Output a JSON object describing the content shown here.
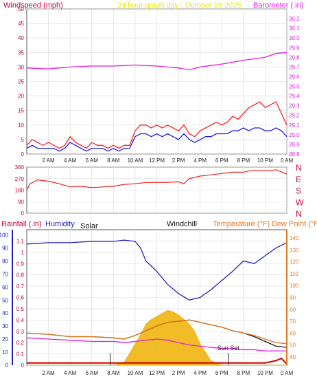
{
  "header": {
    "windspeed_label": "Windspeed (mph)",
    "title": "24 hour graph day : October 18 2025",
    "barometer_label": "Barometer (.in)"
  },
  "colors": {
    "windspeed": "#cc0033",
    "gust_line": "#ff2020",
    "avg_line": "#1a1aee",
    "barometer": "#e020e0",
    "title": "#e8e800",
    "rain_axis": "#cc0033",
    "humidity": "#2020c0",
    "temperature": "#e07820",
    "solar_fill": "#f0b000",
    "direction": "#ee2020"
  },
  "chart_data": [
    {
      "type": "line",
      "title": "24 hour graph day : October 18 2025",
      "x_ticks": [
        "2 AM",
        "4 AM",
        "6 AM",
        "8 AM",
        "10 AM",
        "12 PM",
        "2 PM",
        "4 PM",
        "6 PM",
        "8 PM",
        "10 PM",
        "0 AM"
      ],
      "x_range_hours": [
        0,
        24
      ],
      "ylabel": "Windspeed (mph)",
      "y_ticks": [
        0,
        5,
        10,
        15,
        20,
        25,
        30,
        35,
        40,
        45,
        50
      ],
      "ylim": [
        0,
        50
      ],
      "y2label": "Barometer (.in)",
      "y2_ticks": [
        28.8,
        28.9,
        29.0,
        29.1,
        29.2,
        29.3,
        29.4,
        29.5,
        29.6,
        29.7,
        29.8,
        29.9,
        30.0,
        30.1,
        30.2
      ],
      "y2lim": [
        28.8,
        30.3
      ],
      "series": [
        {
          "name": "Wind Gust",
          "x": [
            0,
            0.5,
            1,
            1.5,
            2,
            2.5,
            3,
            3.5,
            4,
            4.5,
            5,
            5.5,
            6,
            6.5,
            7,
            7.5,
            8,
            8.5,
            9,
            9.5,
            10,
            10.5,
            11,
            11.5,
            12,
            12.5,
            13,
            13.5,
            14,
            14.5,
            15,
            15.5,
            16,
            16.5,
            17,
            17.5,
            18,
            18.5,
            19,
            19.5,
            20,
            20.5,
            21,
            21.5,
            22,
            22.5,
            23,
            23.5,
            24
          ],
          "values": [
            3,
            5,
            4,
            3,
            4,
            3,
            2,
            3,
            6,
            4,
            3,
            2,
            4,
            3,
            3,
            2,
            3,
            2,
            3,
            3,
            8,
            10,
            10,
            9,
            10,
            9,
            10,
            9,
            8,
            10,
            7,
            6,
            8,
            9,
            10,
            11,
            10,
            11,
            13,
            12,
            14,
            16,
            17,
            18,
            16,
            17,
            18,
            14,
            10
          ]
        },
        {
          "name": "Average Wind",
          "x": [
            0,
            0.5,
            1,
            1.5,
            2,
            2.5,
            3,
            3.5,
            4,
            4.5,
            5,
            5.5,
            6,
            6.5,
            7,
            7.5,
            8,
            8.5,
            9,
            9.5,
            10,
            10.5,
            11,
            11.5,
            12,
            12.5,
            13,
            13.5,
            14,
            14.5,
            15,
            15.5,
            16,
            16.5,
            17,
            17.5,
            18,
            18.5,
            19,
            19.5,
            20,
            20.5,
            21,
            21.5,
            22,
            22.5,
            23,
            23.5,
            24
          ],
          "values": [
            2,
            3,
            2,
            2,
            2,
            2,
            1,
            2,
            4,
            3,
            2,
            1,
            2,
            2,
            2,
            1,
            2,
            1,
            2,
            2,
            6,
            7,
            7,
            6,
            7,
            6,
            7,
            6,
            5,
            7,
            5,
            4,
            5,
            6,
            6,
            7,
            7,
            7,
            8,
            8,
            9,
            8,
            9,
            9,
            8,
            8,
            9,
            8,
            6
          ]
        },
        {
          "name": "Barometer",
          "axis": "y2",
          "x": [
            0,
            2,
            4,
            6,
            8,
            10,
            12,
            14,
            15,
            16,
            18,
            20,
            22,
            23,
            24
          ],
          "values": [
            29.69,
            29.68,
            29.7,
            29.71,
            29.71,
            29.72,
            29.71,
            29.69,
            29.67,
            29.7,
            29.73,
            29.77,
            29.8,
            29.84,
            29.85
          ]
        }
      ]
    },
    {
      "type": "line",
      "ylabel": "Wind direction",
      "y_ticks": [
        0,
        90,
        180,
        270,
        360
      ],
      "ylim": [
        0,
        360
      ],
      "y2_ticks": [
        "N",
        "W",
        "S",
        "E",
        "N"
      ],
      "series": [
        {
          "name": "Wind Direction",
          "x": [
            0,
            0.3,
            1,
            2,
            3,
            4,
            5,
            6,
            7,
            8,
            9,
            10,
            11,
            12,
            13,
            14,
            14.5,
            15,
            16,
            17,
            18,
            19,
            20,
            20.5,
            21,
            21.5,
            22,
            22.5,
            23,
            24
          ],
          "values": [
            180,
            230,
            260,
            250,
            230,
            205,
            210,
            200,
            205,
            210,
            225,
            230,
            240,
            240,
            240,
            245,
            230,
            270,
            290,
            300,
            310,
            320,
            320,
            330,
            335,
            330,
            335,
            330,
            340,
            305
          ]
        }
      ]
    },
    {
      "type": "area",
      "legend": [
        "Rainfall (.in)",
        "Humidity",
        "Solar",
        "Windchill",
        "Temperature (°F)",
        "Dew Point (°F)"
      ],
      "annotations": [
        "Sun Set"
      ],
      "y_ticks_rain": [
        0,
        0.1,
        0.2,
        0.3,
        0.4,
        0.5,
        0.6,
        0.7,
        0.8,
        0.9,
        1.0,
        1.1
      ],
      "ylim_rain": [
        0,
        1.2
      ],
      "y_ticks_humidity": [
        0,
        10,
        20,
        30,
        40,
        50,
        60,
        70,
        80,
        90,
        100
      ],
      "ylim_humidity": [
        0,
        104
      ],
      "y_ticks_temp": [
        40,
        50,
        60,
        70,
        80,
        90,
        100,
        110,
        120,
        130,
        140
      ],
      "ylim_temp": [
        33,
        147
      ],
      "series": [
        {
          "name": "Humidity",
          "x": [
            0,
            2,
            4,
            6,
            8,
            9,
            10,
            10.5,
            11,
            12,
            13,
            14,
            15,
            16,
            17,
            18,
            19,
            20,
            21,
            22,
            23,
            24
          ],
          "values": [
            93,
            94,
            94,
            95,
            95,
            96,
            95,
            90,
            80,
            72,
            62,
            55,
            50,
            52,
            58,
            65,
            72,
            80,
            78,
            84,
            90,
            94
          ]
        },
        {
          "name": "Temperature (°F)",
          "x": [
            0,
            2,
            4,
            6,
            8,
            9,
            10,
            11,
            12,
            13,
            14,
            15,
            16,
            17,
            18,
            19,
            20,
            21,
            22,
            23,
            24
          ],
          "values": [
            60,
            59,
            57,
            57,
            56,
            55,
            58,
            62,
            66,
            69,
            70,
            71,
            69,
            67,
            65,
            62,
            60,
            58,
            55,
            52,
            51
          ]
        },
        {
          "name": "Windchill",
          "x": [
            0,
            2,
            4,
            6,
            8,
            9,
            10,
            11,
            12,
            13,
            14,
            15,
            16,
            17,
            18,
            19,
            20,
            21,
            22,
            23,
            24
          ],
          "values": [
            60,
            59,
            57,
            57,
            56,
            55,
            58,
            62,
            66,
            69,
            70,
            71,
            69,
            67,
            65,
            62,
            60,
            57,
            53,
            49,
            48
          ]
        },
        {
          "name": "Dew Point (°F)",
          "x": [
            0,
            2,
            4,
            6,
            8,
            9,
            10,
            11,
            12,
            13,
            14,
            15,
            16,
            17,
            18,
            19,
            20,
            21,
            22,
            23,
            24
          ],
          "values": [
            56,
            55,
            54,
            53,
            53,
            52,
            53,
            54,
            55,
            54,
            52,
            50,
            49,
            48,
            47,
            47,
            46,
            46,
            45,
            45,
            45
          ]
        },
        {
          "name": "Solar",
          "x": [
            0,
            8,
            9,
            9.5,
            10,
            10.5,
            11,
            11.5,
            12,
            12.5,
            13,
            13.5,
            14,
            14.5,
            15,
            15.5,
            16,
            17,
            18,
            24
          ],
          "values": [
            0,
            0,
            2,
            8,
            14,
            20,
            27,
            30,
            32,
            34,
            36,
            35,
            33,
            30,
            27,
            22,
            14,
            3,
            0,
            0
          ]
        },
        {
          "name": "Rainfall (.in)",
          "x": [
            0,
            6,
            12,
            18,
            22,
            23,
            23.5,
            24
          ],
          "values": [
            0.02,
            0.02,
            0.02,
            0.02,
            0.02,
            0.04,
            0.06,
            0.01
          ]
        }
      ]
    }
  ]
}
